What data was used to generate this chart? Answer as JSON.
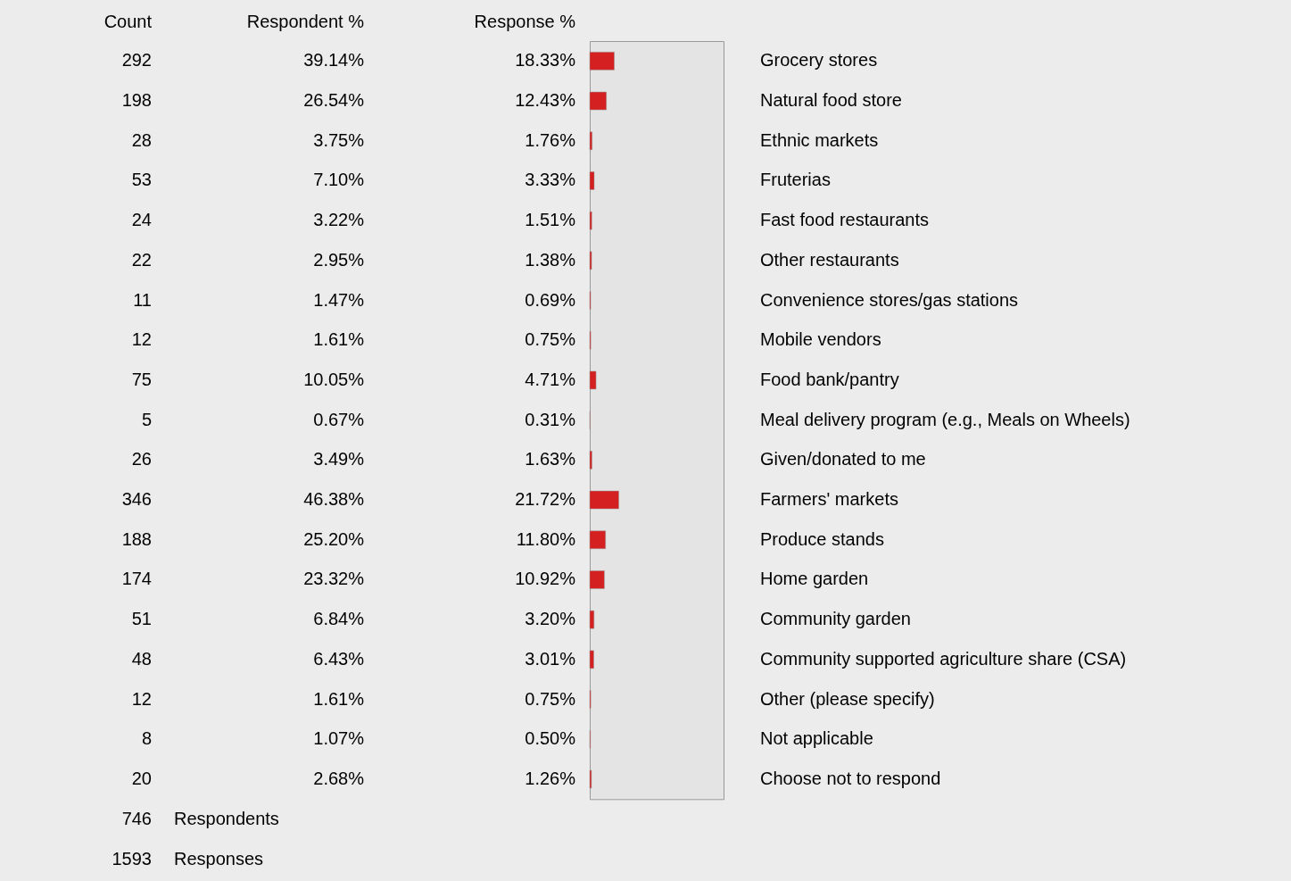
{
  "chart_data": {
    "type": "bar",
    "orientation": "horizontal",
    "xlim": [
      0,
      100
    ],
    "categories": [
      "Grocery stores",
      "Natural food store",
      "Ethnic markets",
      "Fruterias",
      "Fast food restaurants",
      "Other restaurants",
      "Convenience stores/gas stations",
      "Mobile vendors",
      "Food bank/pantry",
      "Meal delivery program (e.g., Meals on Wheels)",
      "Given/donated to me",
      "Farmers' markets",
      "Produce stands",
      "Home garden",
      "Community garden",
      "Community supported agriculture share (CSA)",
      "Other (please specify)",
      "Not applicable",
      "Choose not to respond"
    ],
    "series": [
      {
        "name": "Response %",
        "color": "#d42020",
        "values": [
          18.33,
          12.43,
          1.76,
          3.33,
          1.51,
          1.38,
          0.69,
          0.75,
          4.71,
          0.31,
          1.63,
          21.72,
          11.8,
          10.92,
          3.2,
          3.01,
          0.75,
          0.5,
          1.26
        ],
        "value_labels": [
          "18.33%",
          "12.43%",
          "1.76%",
          "3.33%",
          "1.51%",
          "1.38%",
          "0.69%",
          "0.75%",
          "4.71%",
          "0.31%",
          "1.63%",
          "21.72%",
          "11.80%",
          "10.92%",
          "3.20%",
          "3.01%",
          "0.75%",
          "0.50%",
          "1.26%"
        ]
      }
    ],
    "annotations": [
      "Count",
      "Respondent %",
      "292",
      "39.14%",
      "198",
      "26.54%",
      "28",
      "3.75%",
      "53",
      "7.10%",
      "24",
      "3.22%",
      "22",
      "2.95%",
      "11",
      "1.47%",
      "12",
      "1.61%",
      "75",
      "10.05%",
      "5",
      "0.67%",
      "26",
      "3.49%",
      "346",
      "46.38%",
      "188",
      "25.20%",
      "174",
      "23.32%",
      "51",
      "6.84%",
      "48",
      "6.43%",
      "12",
      "1.61%",
      "8",
      "1.07%",
      "20",
      "2.68%",
      "746 Respondents",
      "1593 Responses"
    ]
  }
}
